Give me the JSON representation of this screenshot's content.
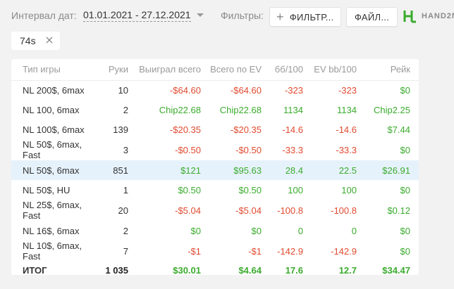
{
  "toolbar": {
    "date_label": "Интервал дат:",
    "date_range": "01.01.2021 - 27.12.2021",
    "filters_label": "Фильтры:",
    "filter_button": "ФИЛЬТР...",
    "file_button": "ФАЙЛ...",
    "logo_text": "HAND2N"
  },
  "chip": {
    "label": "74s"
  },
  "colors": {
    "negative": "#e04a2f",
    "positive": "#3aab2d",
    "highlight": "#e6f2fb"
  },
  "table": {
    "headers": [
      "Тип игры",
      "Руки",
      "Выиграл всего",
      "Всего по EV",
      "бб/100",
      "EV bb/100",
      "Рейк"
    ],
    "rows": [
      {
        "game": "NL 200$, 6max",
        "hands": "10",
        "won": "-$64.60",
        "ev": "-$64.60",
        "bb": "-323",
        "evbb": "-323",
        "rake": "$0",
        "won_s": "neg",
        "ev_s": "neg",
        "bb_s": "neg",
        "evbb_s": "neg",
        "rake_s": "pos"
      },
      {
        "game": "NL 100, 6max",
        "hands": "2",
        "won": "Chip22.68",
        "ev": "Chip22.68",
        "bb": "1134",
        "evbb": "1134",
        "rake": "Chip2.25",
        "won_s": "pos",
        "ev_s": "pos",
        "bb_s": "pos",
        "evbb_s": "pos",
        "rake_s": "pos"
      },
      {
        "game": "NL 100$, 6max",
        "hands": "139",
        "won": "-$20.35",
        "ev": "-$20.35",
        "bb": "-14.6",
        "evbb": "-14.6",
        "rake": "$7.44",
        "won_s": "neg",
        "ev_s": "neg",
        "bb_s": "neg",
        "evbb_s": "neg",
        "rake_s": "pos"
      },
      {
        "game": "NL 50$, 6max, Fast",
        "hands": "3",
        "won": "-$0.50",
        "ev": "-$0.50",
        "bb": "-33.3",
        "evbb": "-33.3",
        "rake": "$0",
        "won_s": "neg",
        "ev_s": "neg",
        "bb_s": "neg",
        "evbb_s": "neg",
        "rake_s": "pos"
      },
      {
        "game": "NL 50$, 6max",
        "hands": "851",
        "won": "$121",
        "ev": "$95.63",
        "bb": "28.4",
        "evbb": "22.5",
        "rake": "$26.91",
        "won_s": "pos",
        "ev_s": "pos",
        "bb_s": "pos",
        "evbb_s": "pos",
        "rake_s": "pos",
        "highlight": true
      },
      {
        "game": "NL 50$, HU",
        "hands": "1",
        "won": "$0.50",
        "ev": "$0.50",
        "bb": "100",
        "evbb": "100",
        "rake": "$0",
        "won_s": "pos",
        "ev_s": "pos",
        "bb_s": "pos",
        "evbb_s": "pos",
        "rake_s": "pos"
      },
      {
        "game": "NL 25$, 6max, Fast",
        "hands": "20",
        "won": "-$5.04",
        "ev": "-$5.04",
        "bb": "-100.8",
        "evbb": "-100.8",
        "rake": "$0.12",
        "won_s": "neg",
        "ev_s": "neg",
        "bb_s": "neg",
        "evbb_s": "neg",
        "rake_s": "pos"
      },
      {
        "game": "NL 16$, 6max",
        "hands": "2",
        "won": "$0",
        "ev": "$0",
        "bb": "0",
        "evbb": "0",
        "rake": "$0",
        "won_s": "pos",
        "ev_s": "pos",
        "bb_s": "pos",
        "evbb_s": "pos",
        "rake_s": "pos"
      },
      {
        "game": "NL 10$, 6max, Fast",
        "hands": "7",
        "won": "-$1",
        "ev": "-$1",
        "bb": "-142.9",
        "evbb": "-142.9",
        "rake": "$0",
        "won_s": "neg",
        "ev_s": "neg",
        "bb_s": "neg",
        "evbb_s": "neg",
        "rake_s": "pos"
      }
    ],
    "total": {
      "game": "ИТОГ",
      "hands": "1 035",
      "won": "$30.01",
      "ev": "$4.64",
      "bb": "17.6",
      "evbb": "12.7",
      "rake": "$34.47"
    }
  }
}
